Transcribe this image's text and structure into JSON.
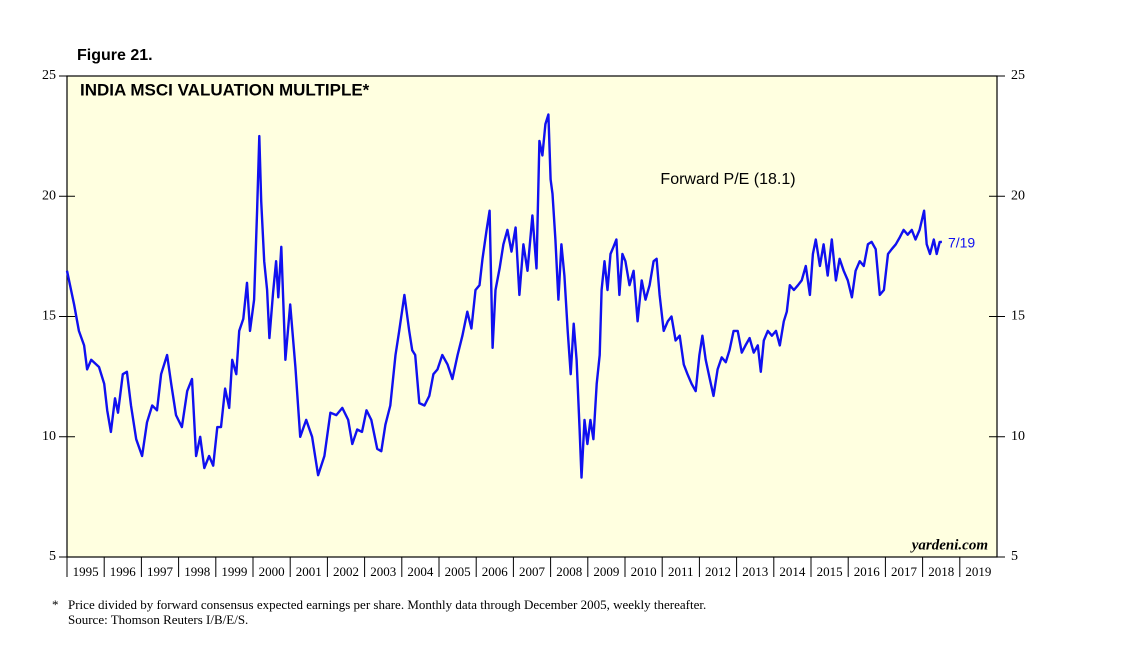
{
  "chart_data": {
    "type": "line",
    "figure_label": "Figure 21.",
    "title": "INDIA MSCI VALUATION MULTIPLE*",
    "annotation": "Forward P/E (18.1)",
    "end_label": "7/19",
    "source_brand": "yardeni.com",
    "footnote_marker": "*",
    "footnote": "Price divided by forward consensus expected earnings per share. Monthly data through December 2005, weekly thereafter.",
    "source": "Source: Thomson Reuters I/B/E/S.",
    "color": "#1010f0",
    "background": "#ffffe0",
    "xlim": [
      1995,
      2020
    ],
    "xticks": [
      {
        "value": 1995,
        "label": "1995"
      },
      {
        "value": 1996,
        "label": "1996"
      },
      {
        "value": 1997,
        "label": "1997"
      },
      {
        "value": 1998,
        "label": "1998"
      },
      {
        "value": 1999,
        "label": "1999"
      },
      {
        "value": 2000,
        "label": "2000"
      },
      {
        "value": 2001,
        "label": "2001"
      },
      {
        "value": 2002,
        "label": "2002"
      },
      {
        "value": 2003,
        "label": "2003"
      },
      {
        "value": 2004,
        "label": "2004"
      },
      {
        "value": 2005,
        "label": "2005"
      },
      {
        "value": 2006,
        "label": "2006"
      },
      {
        "value": 2007,
        "label": "2007"
      },
      {
        "value": 2008,
        "label": "2008"
      },
      {
        "value": 2009,
        "label": "2009"
      },
      {
        "value": 2010,
        "label": "2010"
      },
      {
        "value": 2011,
        "label": "2011"
      },
      {
        "value": 2012,
        "label": "2012"
      },
      {
        "value": 2013,
        "label": "2013"
      },
      {
        "value": 2014,
        "label": "2014"
      },
      {
        "value": 2015,
        "label": "2015"
      },
      {
        "value": 2016,
        "label": "2016"
      },
      {
        "value": 2017,
        "label": "2017"
      },
      {
        "value": 2018,
        "label": "2018"
      },
      {
        "value": 2019,
        "label": "2019"
      }
    ],
    "ylim": [
      5,
      25
    ],
    "yticks": [
      5,
      10,
      15,
      20,
      25
    ],
    "x": [
      1995.0,
      1995.19,
      1995.32,
      1995.46,
      1995.54,
      1995.65,
      1995.86,
      1996.0,
      1996.08,
      1996.18,
      1996.29,
      1996.37,
      1996.5,
      1996.61,
      1996.72,
      1996.86,
      1997.02,
      1997.15,
      1997.29,
      1997.42,
      1997.53,
      1997.69,
      1997.8,
      1997.93,
      1998.09,
      1998.23,
      1998.36,
      1998.47,
      1998.58,
      1998.69,
      1998.82,
      1998.93,
      1999.04,
      1999.14,
      1999.25,
      1999.36,
      1999.44,
      1999.55,
      1999.63,
      1999.74,
      1999.84,
      1999.92,
      2000.03,
      2000.11,
      2000.17,
      2000.22,
      2000.3,
      2000.38,
      2000.44,
      2000.54,
      2000.62,
      2000.68,
      2000.76,
      2000.87,
      2001.0,
      2001.14,
      2001.27,
      2001.43,
      2001.59,
      2001.75,
      2001.92,
      2002.08,
      2002.24,
      2002.4,
      2002.56,
      2002.67,
      2002.8,
      2002.93,
      2003.05,
      2003.18,
      2003.34,
      2003.45,
      2003.56,
      2003.69,
      2003.83,
      2003.93,
      2004.07,
      2004.2,
      2004.28,
      2004.36,
      2004.47,
      2004.61,
      2004.74,
      2004.85,
      2004.96,
      2005.09,
      2005.23,
      2005.36,
      2005.5,
      2005.63,
      2005.76,
      2005.87,
      2005.98,
      2006.09,
      2006.17,
      2006.28,
      2006.36,
      2006.44,
      2006.52,
      2006.63,
      2006.73,
      2006.84,
      2006.95,
      2007.06,
      2007.16,
      2007.27,
      2007.38,
      2007.51,
      2007.62,
      2007.7,
      2007.78,
      2007.86,
      2007.94,
      2008.0,
      2008.05,
      2008.13,
      2008.21,
      2008.29,
      2008.37,
      2008.46,
      2008.54,
      2008.62,
      2008.7,
      2008.78,
      2008.83,
      2008.91,
      2008.99,
      2009.07,
      2009.15,
      2009.24,
      2009.32,
      2009.37,
      2009.45,
      2009.53,
      2009.61,
      2009.69,
      2009.77,
      2009.85,
      2009.93,
      2010.01,
      2010.12,
      2010.23,
      2010.34,
      2010.45,
      2010.55,
      2010.66,
      2010.77,
      2010.85,
      2010.93,
      2011.04,
      2011.15,
      2011.25,
      2011.36,
      2011.47,
      2011.58,
      2011.68,
      2011.79,
      2011.9,
      2012.0,
      2012.08,
      2012.17,
      2012.28,
      2012.38,
      2012.49,
      2012.6,
      2012.71,
      2012.81,
      2012.92,
      2013.03,
      2013.14,
      2013.24,
      2013.35,
      2013.46,
      2013.57,
      2013.65,
      2013.73,
      2013.84,
      2013.95,
      2014.06,
      2014.16,
      2014.27,
      2014.35,
      2014.43,
      2014.54,
      2014.65,
      2014.75,
      2014.86,
      2014.97,
      2015.05,
      2015.13,
      2015.24,
      2015.34,
      2015.45,
      2015.56,
      2015.67,
      2015.77,
      2015.88,
      2015.99,
      2016.1,
      2016.2,
      2016.31,
      2016.42,
      2016.53,
      2016.63,
      2016.74,
      2016.85,
      2016.96,
      2017.07,
      2017.17,
      2017.28,
      2017.39,
      2017.49,
      2017.6,
      2017.71,
      2017.81,
      2017.92,
      2018.04,
      2018.11,
      2018.2,
      2018.3,
      2018.38,
      2018.46,
      2018.52
    ],
    "values": [
      16.9,
      15.5,
      14.4,
      13.8,
      12.8,
      13.2,
      12.9,
      12.2,
      11.1,
      10.2,
      11.6,
      11.0,
      12.6,
      12.7,
      11.3,
      9.9,
      9.2,
      10.6,
      11.3,
      11.1,
      12.6,
      13.4,
      12.2,
      10.9,
      10.4,
      11.9,
      12.4,
      9.2,
      10.0,
      8.7,
      9.2,
      8.8,
      10.4,
      10.4,
      12.0,
      11.2,
      13.2,
      12.6,
      14.4,
      14.9,
      16.4,
      14.4,
      15.7,
      19.4,
      22.5,
      19.8,
      17.3,
      16.1,
      14.1,
      16.0,
      17.3,
      15.8,
      17.9,
      13.2,
      15.5,
      12.9,
      10.0,
      10.7,
      10.0,
      8.4,
      9.2,
      11.0,
      10.9,
      11.2,
      10.7,
      9.7,
      10.3,
      10.2,
      11.1,
      10.7,
      9.5,
      9.4,
      10.5,
      11.3,
      13.4,
      14.4,
      15.9,
      14.4,
      13.6,
      13.4,
      11.4,
      11.3,
      11.7,
      12.6,
      12.8,
      13.4,
      13.0,
      12.4,
      13.4,
      14.2,
      15.2,
      14.5,
      16.1,
      16.3,
      17.4,
      18.6,
      19.4,
      13.7,
      16.1,
      17.0,
      18.0,
      18.6,
      17.7,
      18.7,
      15.9,
      18.0,
      16.9,
      19.2,
      17.0,
      22.3,
      21.7,
      23.0,
      23.4,
      20.7,
      20.1,
      18.2,
      15.7,
      18.0,
      16.7,
      14.4,
      12.6,
      14.7,
      13.2,
      10.3,
      8.3,
      10.7,
      9.7,
      10.7,
      9.9,
      12.2,
      13.4,
      16.1,
      17.3,
      16.1,
      17.6,
      17.9,
      18.2,
      15.9,
      17.6,
      17.3,
      16.3,
      16.9,
      14.8,
      16.5,
      15.7,
      16.3,
      17.3,
      17.4,
      15.9,
      14.4,
      14.8,
      15.0,
      14.0,
      14.2,
      13.0,
      12.6,
      12.2,
      11.9,
      13.4,
      14.2,
      13.2,
      12.4,
      11.7,
      12.8,
      13.3,
      13.1,
      13.6,
      14.4,
      14.4,
      13.5,
      13.8,
      14.1,
      13.5,
      13.8,
      12.7,
      14.0,
      14.4,
      14.2,
      14.4,
      13.8,
      14.8,
      15.2,
      16.3,
      16.1,
      16.3,
      16.5,
      17.1,
      15.9,
      17.6,
      18.2,
      17.1,
      18.0,
      16.7,
      18.2,
      16.5,
      17.4,
      16.9,
      16.5,
      15.8,
      16.9,
      17.3,
      17.1,
      18.0,
      18.1,
      17.8,
      15.9,
      16.1,
      17.6,
      17.8,
      18.0,
      18.3,
      18.6,
      18.4,
      18.6,
      18.2,
      18.6,
      19.4,
      18.0,
      17.6,
      18.2,
      17.6,
      18.1,
      18.1
    ]
  }
}
